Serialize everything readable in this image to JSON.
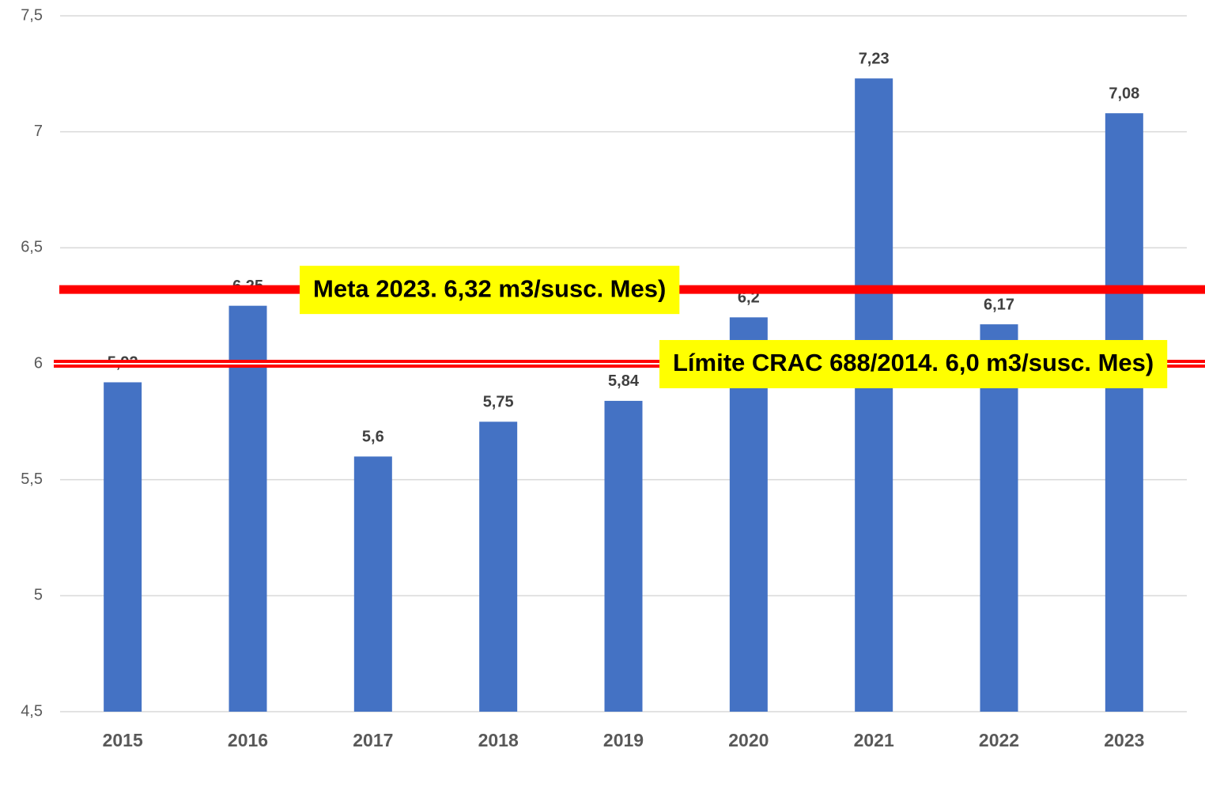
{
  "chart_data": {
    "type": "bar",
    "categories": [
      "2015",
      "2016",
      "2017",
      "2018",
      "2019",
      "2020",
      "2021",
      "2022",
      "2023"
    ],
    "values": [
      5.92,
      6.25,
      5.6,
      5.75,
      5.84,
      6.2,
      7.23,
      6.17,
      7.08
    ],
    "value_labels": [
      "5,92",
      "6,25",
      "5,6",
      "5,75",
      "5,84",
      "6,2",
      "7,23",
      "6,17",
      "7,08"
    ],
    "color": "#4472c4",
    "ylim": [
      4.5,
      7.5
    ],
    "yticks": [
      {
        "value": 4.5,
        "label": "4,5"
      },
      5,
      {
        "value": 5.5,
        "label": "5,5"
      },
      6,
      {
        "value": 6.5,
        "label": "6,5"
      },
      7,
      {
        "value": 7.5,
        "label": "7,5"
      }
    ],
    "grid": true,
    "reference_lines": [
      {
        "value": 6.32,
        "label": "Meta 2023. 6,32 m3/susc. Mes)",
        "color": "#ff0000"
      },
      {
        "value": 6.0,
        "label": "Límite CRAC 688/2014. 6,0 m3/susc. Mes)",
        "color": "#ff0000"
      }
    ]
  }
}
